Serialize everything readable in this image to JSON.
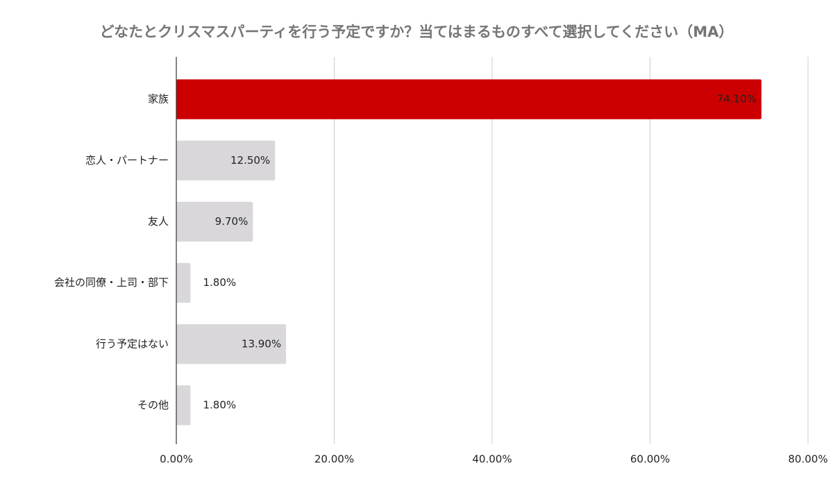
{
  "chart_data": {
    "type": "hbar",
    "title": "どなたとクリスマスパーティを行う予定ですか？当てはまるものすべて選択してください（MA）",
    "categories": [
      "家族",
      "恋人・パートナー",
      "友人",
      "会社の同僚・上司・部下",
      "行う予定はない",
      "その他"
    ],
    "values": [
      74.1,
      12.5,
      9.7,
      1.8,
      13.9,
      1.8
    ],
    "value_labels": [
      "74.10%",
      "12.50%",
      "9.70%",
      "1.80%",
      "13.90%",
      "1.80%"
    ],
    "colors": [
      "#cc0000",
      "#d9d7da",
      "#d9d7da",
      "#d9d7da",
      "#d9d7da",
      "#d9d7da"
    ],
    "xlim": [
      0,
      80
    ],
    "xticks": [
      {
        "value": 0,
        "label": "0.00%"
      },
      {
        "value": 20,
        "label": "20.00%"
      },
      {
        "value": 40,
        "label": "40.00%"
      },
      {
        "value": 60,
        "label": "60.00%"
      },
      {
        "value": 80,
        "label": "80.00%"
      }
    ],
    "grid": true
  }
}
